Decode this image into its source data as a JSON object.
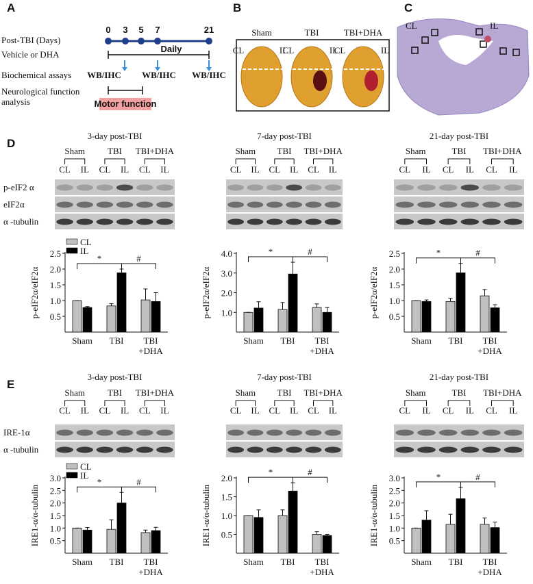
{
  "panels": {
    "A": {
      "label": "A",
      "rows": [
        "Post-TBI (Days)",
        "Vehicle or DHA",
        "Biochemical assays",
        "Neurological function\nanalysis"
      ],
      "days": [
        0,
        3,
        5,
        7,
        21
      ],
      "daily": "Daily",
      "assays": [
        "WB/IHC",
        "WB/IHC",
        "WB/IHC"
      ],
      "motor": "Motor function"
    },
    "B": {
      "label": "B",
      "groups": [
        "Sham",
        "TBI",
        "TBI+DHA"
      ],
      "sides": [
        "CL",
        "IL"
      ]
    },
    "C": {
      "label": "C",
      "sides": [
        "CL",
        "IL"
      ]
    },
    "D": {
      "label": "D",
      "rows": [
        "p-eIF2 α",
        "eIF2α",
        "α -tubulin"
      ],
      "blots": [
        {
          "title": "3-day post-TBI",
          "groups": [
            "Sham",
            "TBI",
            "TBI+DHA"
          ],
          "lanes": [
            "CL",
            "IL"
          ]
        },
        {
          "title": "7-day post-TBI",
          "groups": [
            "Sham",
            "TBI",
            "TBI+DHA"
          ],
          "lanes": [
            "CL",
            "IL"
          ]
        },
        {
          "title": "21-day post-TBI",
          "groups": [
            "Sham",
            "TBI",
            "TBI+DHA"
          ],
          "lanes": [
            "CL",
            "IL"
          ]
        }
      ]
    },
    "E": {
      "label": "E",
      "rows": [
        "IRE-1α",
        "α -tubulin"
      ],
      "blots": [
        {
          "title": "3-day post-TBI",
          "groups": [
            "Sham",
            "TBI",
            "TBI+DHA"
          ],
          "lanes": [
            "CL",
            "IL"
          ]
        },
        {
          "title": "7-day post-TBI",
          "groups": [
            "Sham",
            "TBI",
            "TBI+DHA"
          ],
          "lanes": [
            "CL",
            "IL"
          ]
        },
        {
          "title": "21-day post-TBI",
          "groups": [
            "Sham",
            "TBI",
            "TBI+DHA"
          ],
          "lanes": [
            "CL",
            "IL"
          ]
        }
      ]
    }
  },
  "chart_data": [
    {
      "type": "bar",
      "ylabel": "p-eIF2α/eIF2α",
      "categories": [
        "Sham",
        "TBI",
        "TBI\n+DHA"
      ],
      "ylim": [
        0,
        2.5
      ],
      "yticks": [
        0.5,
        {
          "value": 1,
          "label": "1.0"
        },
        1.5,
        {
          "value": 2,
          "label": "2.0"
        },
        2.5
      ],
      "legend": "upper left",
      "annotations": [
        "*",
        "#"
      ],
      "series": [
        {
          "name": "CL",
          "color": "#c0c0c0",
          "values": [
            1.0,
            0.83,
            1.02
          ],
          "errors": [
            0,
            0.07,
            0.35
          ]
        },
        {
          "name": "IL",
          "color": "#000000",
          "values": [
            0.78,
            1.88,
            0.97
          ],
          "errors": [
            0.03,
            0.12,
            0.28
          ]
        }
      ]
    },
    {
      "type": "bar",
      "ylabel": "p-eIF2α/eIF2α",
      "categories": [
        "Sham",
        "TBI",
        "TBI\n+DHA"
      ],
      "ylim": [
        0,
        4
      ],
      "yticks": [
        {
          "value": 1,
          "label": "1.0"
        },
        {
          "value": 2,
          "label": "2.0"
        },
        {
          "value": 3,
          "label": "3.0"
        },
        {
          "value": 4,
          "label": "4.0"
        }
      ],
      "annotations": [
        "*",
        "#"
      ],
      "series": [
        {
          "color": "#c0c0c0",
          "values": [
            1.0,
            1.15,
            1.25
          ],
          "errors": [
            0,
            0.35,
            0.18
          ]
        },
        {
          "color": "#000000",
          "values": [
            1.22,
            2.95,
            1.0
          ],
          "errors": [
            0.32,
            0.6,
            0.25
          ]
        }
      ]
    },
    {
      "type": "bar",
      "ylabel": "p-eIF2α/eIF2α",
      "categories": [
        "Sham",
        "TBI",
        "TBI\n+DHA"
      ],
      "ylim": [
        0,
        2.5
      ],
      "yticks": [
        0.5,
        {
          "value": 1,
          "label": "1.0"
        },
        1.5,
        {
          "value": 2,
          "label": "2.0"
        },
        2.5
      ],
      "annotations": [
        "*",
        "#"
      ],
      "series": [
        {
          "color": "#c0c0c0",
          "values": [
            1.0,
            0.97,
            1.15
          ],
          "errors": [
            0,
            0.1,
            0.2
          ]
        },
        {
          "color": "#000000",
          "values": [
            0.97,
            1.88,
            0.77
          ],
          "errors": [
            0.05,
            0.3,
            0.1
          ]
        }
      ]
    },
    {
      "type": "bar",
      "ylabel": "IRE1-α/α-tubulin",
      "categories": [
        "Sham",
        "TBI",
        "TBI\n+DHA"
      ],
      "ylim": [
        0,
        3
      ],
      "yticks": [
        0.5,
        {
          "value": 1,
          "label": "1.0"
        },
        1.5,
        {
          "value": 2,
          "label": "2.0"
        },
        2.5,
        {
          "value": 3,
          "label": "3.0"
        }
      ],
      "legend": "upper left",
      "annotations": [
        "*",
        "#"
      ],
      "series": [
        {
          "name": "CL",
          "color": "#c0c0c0",
          "values": [
            1.0,
            0.95,
            0.82
          ],
          "errors": [
            0,
            0.38,
            0.1
          ]
        },
        {
          "name": "IL",
          "color": "#000000",
          "values": [
            0.92,
            2.0,
            0.9
          ],
          "errors": [
            0.1,
            0.42,
            0.13
          ]
        }
      ]
    },
    {
      "type": "bar",
      "ylabel": "IRE1-α/α-tubulin",
      "categories": [
        "Sham",
        "TBI",
        "TBI\n+DHA"
      ],
      "ylim": [
        0,
        2
      ],
      "yticks": [
        0.5,
        {
          "value": 1,
          "label": "1.0"
        },
        1.5,
        {
          "value": 2,
          "label": "2.0"
        }
      ],
      "annotations": [
        "*",
        "#"
      ],
      "series": [
        {
          "color": "#c0c0c0",
          "values": [
            1.0,
            1.0,
            0.5
          ],
          "errors": [
            0,
            0.15,
            0.07
          ]
        },
        {
          "color": "#000000",
          "values": [
            0.95,
            1.65,
            0.47
          ],
          "errors": [
            0.2,
            0.22,
            0.03
          ]
        }
      ]
    },
    {
      "type": "bar",
      "ylabel": "IRE1-α/α-tubulin",
      "categories": [
        "Sham",
        "TBI",
        "TBI\n+DHA"
      ],
      "ylim": [
        0,
        3
      ],
      "yticks": [
        0.5,
        {
          "value": 1,
          "label": "1.0"
        },
        1.5,
        {
          "value": 2,
          "label": "2.0"
        },
        2.5,
        {
          "value": 3,
          "label": "3.0"
        }
      ],
      "annotations": [
        "*",
        "#"
      ],
      "series": [
        {
          "color": "#c0c0c0",
          "values": [
            1.0,
            1.15,
            1.15
          ],
          "errors": [
            0,
            0.4,
            0.25
          ]
        },
        {
          "color": "#000000",
          "values": [
            1.32,
            2.17,
            1.02
          ],
          "errors": [
            0.37,
            0.45,
            0.22
          ]
        }
      ]
    }
  ]
}
